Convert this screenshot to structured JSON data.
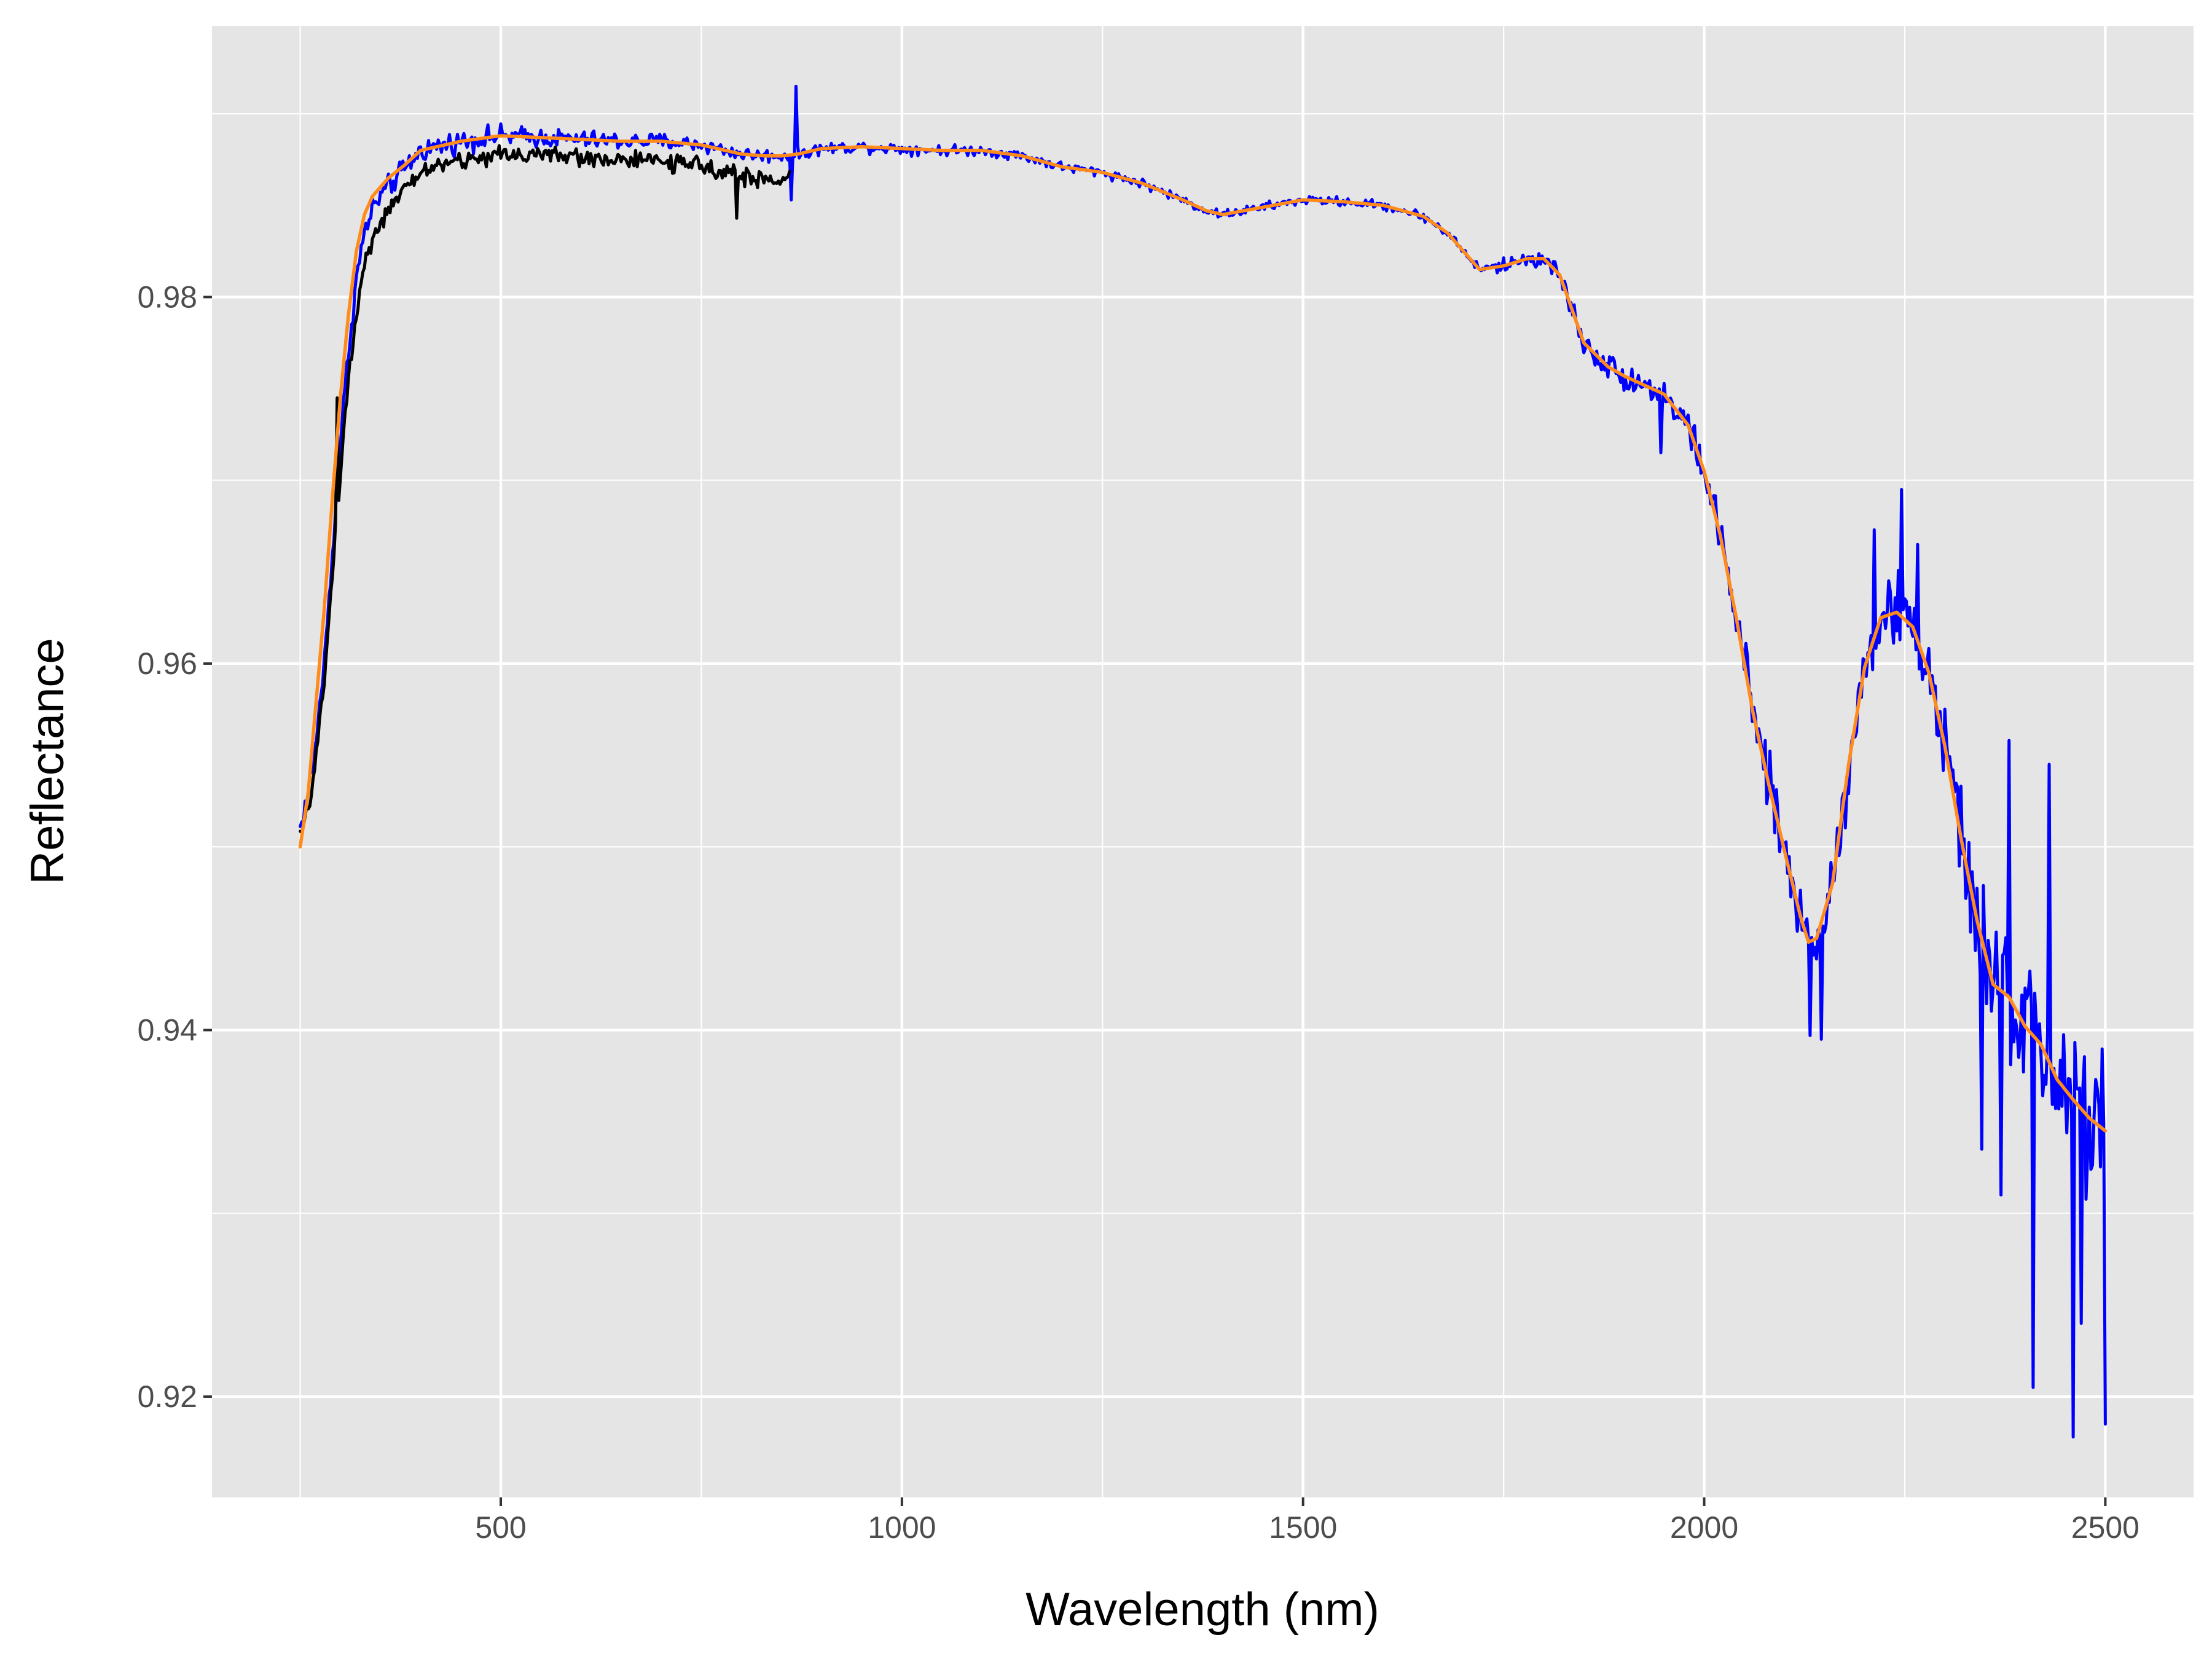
{
  "chart_data": {
    "type": "line",
    "title": "",
    "xlabel": "Wavelength (nm)",
    "ylabel": "Reflectance",
    "xlim": [
      140,
      2610
    ],
    "ylim": [
      0.9145,
      0.9948
    ],
    "x_ticks": [
      500,
      1000,
      1500,
      2000,
      2500
    ],
    "x_tick_labels": [
      "500",
      "1000",
      "1500",
      "2000",
      "2500"
    ],
    "y_ticks": [
      0.92,
      0.94,
      0.96,
      0.98
    ],
    "y_tick_labels": [
      "0.92",
      "0.94",
      "0.96",
      "0.98"
    ],
    "x_minor_ticks": [
      250,
      750,
      1250,
      1750,
      2250
    ],
    "y_minor_ticks": [
      0.93,
      0.95,
      0.97,
      0.99
    ],
    "grid": true,
    "legend": "none",
    "colors": {
      "panel": "#e5e5e5",
      "grid": "#ffffff"
    },
    "series": [
      {
        "color": "#0000ff",
        "noise": [
          [
            250,
            0.0008
          ],
          [
            350,
            0.0008
          ],
          [
            900,
            0.0004
          ],
          [
            1300,
            0.0003
          ],
          [
            1700,
            0.0003
          ],
          [
            1850,
            0.0008
          ],
          [
            2000,
            0.0012
          ],
          [
            2100,
            0.0022
          ],
          [
            2200,
            0.0022
          ],
          [
            2300,
            0.0028
          ],
          [
            2350,
            0.004
          ],
          [
            2500,
            0.006
          ]
        ],
        "x": [
          250,
          260,
          270,
          280,
          290,
          300,
          310,
          320,
          330,
          340,
          350,
          360,
          380,
          400,
          420,
          450,
          500,
          550,
          600,
          650,
          700,
          750,
          800,
          830,
          850,
          870,
          900,
          950,
          1000,
          1050,
          1100,
          1150,
          1200,
          1250,
          1300,
          1350,
          1380,
          1400,
          1450,
          1500,
          1550,
          1600,
          1650,
          1680,
          1700,
          1720,
          1750,
          1780,
          1800,
          1820,
          1850,
          1880,
          1900,
          1950,
          1980,
          2000,
          2020,
          2040,
          2060,
          2080,
          2100,
          2120,
          2130,
          2140,
          2160,
          2180,
          2200,
          2220,
          2240,
          2260,
          2280,
          2300,
          2320,
          2340,
          2360,
          2380,
          2400,
          2420,
          2440,
          2460,
          2480,
          2500
        ],
        "y": [
          0.951,
          0.953,
          0.956,
          0.96,
          0.966,
          0.972,
          0.977,
          0.981,
          0.9835,
          0.9848,
          0.9855,
          0.986,
          0.987,
          0.988,
          0.9882,
          0.9885,
          0.9888,
          0.9887,
          0.9886,
          0.9885,
          0.9885,
          0.9883,
          0.9878,
          0.9877,
          0.9877,
          0.9878,
          0.9881,
          0.9882,
          0.9881,
          0.988,
          0.988,
          0.9877,
          0.9871,
          0.9868,
          0.9862,
          0.9853,
          0.9847,
          0.9845,
          0.9849,
          0.9853,
          0.9852,
          0.985,
          0.9844,
          0.9835,
          0.9825,
          0.9815,
          0.9817,
          0.9821,
          0.9821,
          0.9812,
          0.9775,
          0.9762,
          0.9757,
          0.9747,
          0.973,
          0.9705,
          0.967,
          0.9625,
          0.9575,
          0.9535,
          0.9498,
          0.9462,
          0.9448,
          0.945,
          0.948,
          0.9545,
          0.9598,
          0.9625,
          0.9628,
          0.962,
          0.9595,
          0.9555,
          0.9505,
          0.946,
          0.9425,
          0.9418,
          0.9402,
          0.9392,
          0.9373,
          0.9362,
          0.9352,
          0.9345
        ],
        "spikes": [
          [
            868,
            0.9915
          ],
          [
            862,
            0.9853
          ],
          [
            2246,
            0.9695
          ],
          [
            2211,
            0.9673
          ],
          [
            2266,
            0.9665
          ],
          [
            2410,
            0.9205
          ],
          [
            2460,
            0.9178
          ],
          [
            2500,
            0.9185
          ],
          [
            2470,
            0.924
          ],
          [
            2430,
            0.9545
          ],
          [
            2380,
            0.9558
          ],
          [
            2345,
            0.9335
          ],
          [
            2370,
            0.931
          ],
          [
            2132,
            0.9397
          ],
          [
            2145,
            0.9395
          ],
          [
            1945,
            0.9715
          ],
          [
            1965,
            0.9735
          ]
        ]
      },
      {
        "color": "#000000",
        "noise": [
          [
            250,
            0.0006
          ],
          [
            860,
            0.0006
          ]
        ],
        "x": [
          250,
          260,
          270,
          280,
          290,
          300,
          310,
          320,
          330,
          340,
          350,
          360,
          380,
          400,
          420,
          450,
          500,
          550,
          600,
          650,
          700,
          750,
          790,
          800,
          830,
          850,
          860
        ],
        "y": [
          0.9505,
          0.952,
          0.955,
          0.959,
          0.965,
          0.9705,
          0.9755,
          0.979,
          0.982,
          0.9832,
          0.984,
          0.9847,
          0.9858,
          0.9868,
          0.9872,
          0.9874,
          0.9878,
          0.9878,
          0.9876,
          0.9875,
          0.9874,
          0.9871,
          0.9869,
          0.9866,
          0.9863,
          0.9864,
          0.9868
        ],
        "spikes": [
          [
            793,
            0.9843
          ],
          [
            295,
            0.9745
          ]
        ]
      },
      {
        "color": "#ff8c1a",
        "noise": [],
        "x": [
          250,
          260,
          270,
          280,
          290,
          300,
          310,
          320,
          330,
          340,
          350,
          360,
          380,
          400,
          420,
          450,
          500,
          550,
          600,
          650,
          700,
          750,
          800,
          830,
          850,
          870,
          900,
          950,
          1000,
          1050,
          1100,
          1150,
          1200,
          1250,
          1300,
          1350,
          1380,
          1400,
          1450,
          1500,
          1550,
          1600,
          1650,
          1680,
          1700,
          1720,
          1750,
          1780,
          1800,
          1820,
          1850,
          1880,
          1900,
          1950,
          1980,
          2000,
          2020,
          2040,
          2060,
          2080,
          2100,
          2120,
          2130,
          2140,
          2160,
          2180,
          2200,
          2220,
          2240,
          2260,
          2280,
          2300,
          2320,
          2340,
          2360,
          2380,
          2400,
          2420,
          2440,
          2460,
          2480,
          2500
        ],
        "y": [
          0.95,
          0.953,
          0.958,
          0.963,
          0.969,
          0.9745,
          0.979,
          0.9825,
          0.9845,
          0.9855,
          0.986,
          0.9865,
          0.9872,
          0.988,
          0.9882,
          0.9885,
          0.9888,
          0.9887,
          0.9886,
          0.9885,
          0.9885,
          0.9883,
          0.9878,
          0.9877,
          0.9877,
          0.9878,
          0.9881,
          0.9882,
          0.9881,
          0.988,
          0.988,
          0.9877,
          0.9871,
          0.9868,
          0.9862,
          0.9853,
          0.9847,
          0.9845,
          0.9849,
          0.9853,
          0.9852,
          0.985,
          0.9844,
          0.9835,
          0.9825,
          0.9815,
          0.9817,
          0.9821,
          0.9821,
          0.9812,
          0.9775,
          0.9762,
          0.9757,
          0.9747,
          0.973,
          0.9705,
          0.967,
          0.9625,
          0.9575,
          0.9535,
          0.9498,
          0.9462,
          0.9448,
          0.945,
          0.948,
          0.9545,
          0.9598,
          0.9625,
          0.9628,
          0.962,
          0.9595,
          0.9555,
          0.9505,
          0.946,
          0.9425,
          0.9418,
          0.9402,
          0.9392,
          0.9373,
          0.9362,
          0.9352,
          0.9345
        ],
        "spikes": []
      }
    ]
  }
}
